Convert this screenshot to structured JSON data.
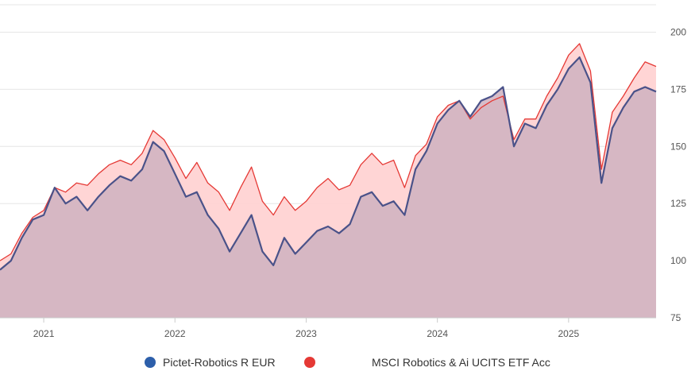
{
  "chart_data": {
    "type": "area",
    "x_axis": {
      "ticks": [
        "2021",
        "2022",
        "2023",
        "2024",
        "2025"
      ],
      "range": [
        "2020-09",
        "2025-09"
      ]
    },
    "y_axis": {
      "ticks": [
        75,
        100,
        125,
        150,
        175,
        200
      ],
      "ylim": [
        75,
        212
      ],
      "position": "right"
    },
    "grid": true,
    "legend_placement": "bottom",
    "series": [
      {
        "name": "Pictet-Robotics R EUR",
        "color": "#2d5faa",
        "line_color": "#4a5289",
        "points": [
          [
            "2020-09",
            96
          ],
          [
            "2020-10",
            100
          ],
          [
            "2020-11",
            110
          ],
          [
            "2020-12",
            118
          ],
          [
            "2021-01",
            120
          ],
          [
            "2021-02",
            132
          ],
          [
            "2021-03",
            125
          ],
          [
            "2021-04",
            128
          ],
          [
            "2021-05",
            122
          ],
          [
            "2021-06",
            128
          ],
          [
            "2021-07",
            133
          ],
          [
            "2021-08",
            137
          ],
          [
            "2021-09",
            135
          ],
          [
            "2021-10",
            140
          ],
          [
            "2021-11",
            152
          ],
          [
            "2021-12",
            148
          ],
          [
            "2022-01",
            138
          ],
          [
            "2022-02",
            128
          ],
          [
            "2022-03",
            130
          ],
          [
            "2022-04",
            120
          ],
          [
            "2022-05",
            114
          ],
          [
            "2022-06",
            104
          ],
          [
            "2022-07",
            112
          ],
          [
            "2022-08",
            120
          ],
          [
            "2022-09",
            104
          ],
          [
            "2022-10",
            98
          ],
          [
            "2022-11",
            110
          ],
          [
            "2022-12",
            103
          ],
          [
            "2023-01",
            108
          ],
          [
            "2023-02",
            113
          ],
          [
            "2023-03",
            115
          ],
          [
            "2023-04",
            112
          ],
          [
            "2023-05",
            116
          ],
          [
            "2023-06",
            128
          ],
          [
            "2023-07",
            130
          ],
          [
            "2023-08",
            124
          ],
          [
            "2023-09",
            126
          ],
          [
            "2023-10",
            120
          ],
          [
            "2023-11",
            140
          ],
          [
            "2023-12",
            148
          ],
          [
            "2024-01",
            160
          ],
          [
            "2024-02",
            166
          ],
          [
            "2024-03",
            170
          ],
          [
            "2024-04",
            163
          ],
          [
            "2024-05",
            170
          ],
          [
            "2024-06",
            172
          ],
          [
            "2024-07",
            176
          ],
          [
            "2024-08",
            150
          ],
          [
            "2024-09",
            160
          ],
          [
            "2024-10",
            158
          ],
          [
            "2024-11",
            168
          ],
          [
            "2024-12",
            175
          ],
          [
            "2025-01",
            184
          ],
          [
            "2025-02",
            189
          ],
          [
            "2025-03",
            178
          ],
          [
            "2025-04",
            134
          ],
          [
            "2025-05",
            158
          ],
          [
            "2025-06",
            167
          ],
          [
            "2025-07",
            174
          ],
          [
            "2025-08",
            176
          ],
          [
            "2025-09",
            174
          ]
        ]
      },
      {
        "name": "MSCI Robotics & Ai UCITS ETF Acc",
        "color": "#e53935",
        "line_color": "#e53935",
        "points": [
          [
            "2020-09",
            100
          ],
          [
            "2020-10",
            103
          ],
          [
            "2020-11",
            112
          ],
          [
            "2020-12",
            119
          ],
          [
            "2021-01",
            122
          ],
          [
            "2021-02",
            132
          ],
          [
            "2021-03",
            130
          ],
          [
            "2021-04",
            134
          ],
          [
            "2021-05",
            133
          ],
          [
            "2021-06",
            138
          ],
          [
            "2021-07",
            142
          ],
          [
            "2021-08",
            144
          ],
          [
            "2021-09",
            142
          ],
          [
            "2021-10",
            147
          ],
          [
            "2021-11",
            157
          ],
          [
            "2021-12",
            153
          ],
          [
            "2022-01",
            145
          ],
          [
            "2022-02",
            136
          ],
          [
            "2022-03",
            143
          ],
          [
            "2022-04",
            134
          ],
          [
            "2022-05",
            130
          ],
          [
            "2022-06",
            122
          ],
          [
            "2022-07",
            132
          ],
          [
            "2022-08",
            141
          ],
          [
            "2022-09",
            126
          ],
          [
            "2022-10",
            120
          ],
          [
            "2022-11",
            128
          ],
          [
            "2022-12",
            122
          ],
          [
            "2023-01",
            126
          ],
          [
            "2023-02",
            132
          ],
          [
            "2023-03",
            136
          ],
          [
            "2023-04",
            131
          ],
          [
            "2023-05",
            133
          ],
          [
            "2023-06",
            142
          ],
          [
            "2023-07",
            147
          ],
          [
            "2023-08",
            142
          ],
          [
            "2023-09",
            144
          ],
          [
            "2023-10",
            132
          ],
          [
            "2023-11",
            146
          ],
          [
            "2023-12",
            151
          ],
          [
            "2024-01",
            163
          ],
          [
            "2024-02",
            168
          ],
          [
            "2024-03",
            170
          ],
          [
            "2024-04",
            162
          ],
          [
            "2024-05",
            167
          ],
          [
            "2024-06",
            170
          ],
          [
            "2024-07",
            172
          ],
          [
            "2024-08",
            153
          ],
          [
            "2024-09",
            162
          ],
          [
            "2024-10",
            162
          ],
          [
            "2024-11",
            172
          ],
          [
            "2024-12",
            180
          ],
          [
            "2025-01",
            190
          ],
          [
            "2025-02",
            195
          ],
          [
            "2025-03",
            183
          ],
          [
            "2025-04",
            140
          ],
          [
            "2025-05",
            165
          ],
          [
            "2025-06",
            172
          ],
          [
            "2025-07",
            180
          ],
          [
            "2025-08",
            187
          ],
          [
            "2025-09",
            185
          ]
        ]
      }
    ]
  }
}
